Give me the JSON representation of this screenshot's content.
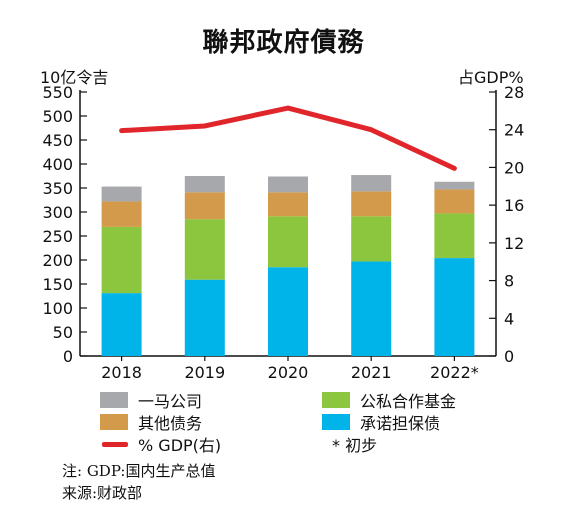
{
  "title": "聯邦政府債務",
  "left_unit": "10亿令吉",
  "right_unit": "占GDP%",
  "legend": {
    "yimalink": "一马公司",
    "ppp": "公私合作基金",
    "other": "其他债务",
    "guaranteed": "承诺担保债",
    "gdp": "% GDP(右)",
    "prelim": "* 初步"
  },
  "notes": {
    "note1": "注:  GDP:国内生产总值",
    "note2": "来源:财政部"
  },
  "colors": {
    "guaranteed": "#00b4ea",
    "ppp": "#8cc63f",
    "other": "#d49a4c",
    "yimalink": "#a6a8ab",
    "gdp_line": "#e0262b"
  },
  "chart_data": {
    "type": "bar",
    "stacked": true,
    "categories": [
      "2018",
      "2019",
      "2020",
      "2021",
      "2022*"
    ],
    "series": [
      {
        "name": "承诺担保债",
        "values": [
          131,
          159,
          185,
          197,
          204
        ]
      },
      {
        "name": "公私合作基金",
        "values": [
          138,
          126,
          106,
          94,
          93
        ]
      },
      {
        "name": "其他债务",
        "values": [
          53,
          56,
          50,
          52,
          50
        ]
      },
      {
        "name": "一马公司",
        "values": [
          31,
          34,
          33,
          34,
          16
        ]
      }
    ],
    "line": {
      "name": "% GDP(右)",
      "values": [
        23.9,
        24.4,
        26.3,
        24,
        19.9
      ],
      "axis": "right"
    },
    "y_left": {
      "label": "10亿令吉",
      "range": [
        0,
        550
      ],
      "ticks": [
        0,
        50,
        100,
        150,
        200,
        250,
        300,
        350,
        400,
        450,
        500,
        550
      ]
    },
    "y_right": {
      "label": "占GDP%",
      "range": [
        0,
        28
      ],
      "ticks": [
        0,
        4,
        8,
        12,
        16,
        20,
        24,
        28
      ]
    },
    "grid": false,
    "legend_position": "bottom"
  }
}
